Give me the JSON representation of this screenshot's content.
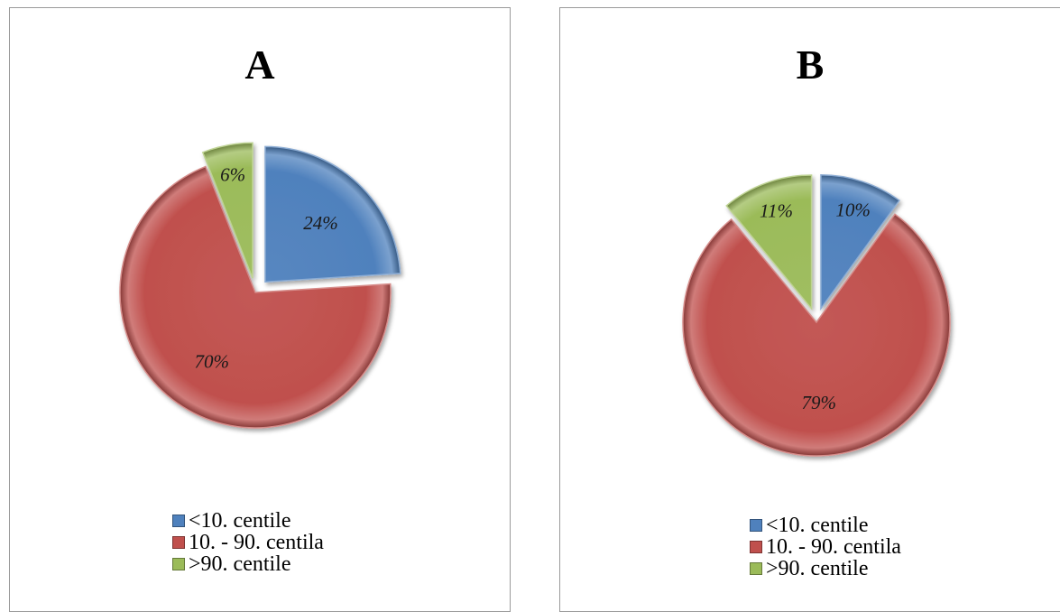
{
  "colors": {
    "blue": "#4f81bd",
    "red": "#c0504d",
    "green": "#9bbb59"
  },
  "chart_data": [
    {
      "type": "pie",
      "title": "A",
      "slices": [
        {
          "label": "<10. centile",
          "value": 24,
          "display": "24%",
          "color": "#4f81bd",
          "exploded": true
        },
        {
          "label": "10. - 90. centila",
          "value": 70,
          "display": "70%",
          "color": "#c0504d",
          "exploded": false
        },
        {
          "label": ">90. centile",
          "value": 6,
          "display": "6%",
          "color": "#9bbb59",
          "exploded": true
        }
      ],
      "legend_position": "bottom"
    },
    {
      "type": "pie",
      "title": "B",
      "slices": [
        {
          "label": "<10. centile",
          "value": 10,
          "display": "10%",
          "color": "#4f81bd",
          "exploded": true
        },
        {
          "label": "10. - 90. centila",
          "value": 79,
          "display": "79%",
          "color": "#c0504d",
          "exploded": false
        },
        {
          "label": ">90. centile",
          "value": 11,
          "display": "11%",
          "color": "#9bbb59",
          "exploded": true
        }
      ],
      "legend_position": "bottom"
    }
  ]
}
